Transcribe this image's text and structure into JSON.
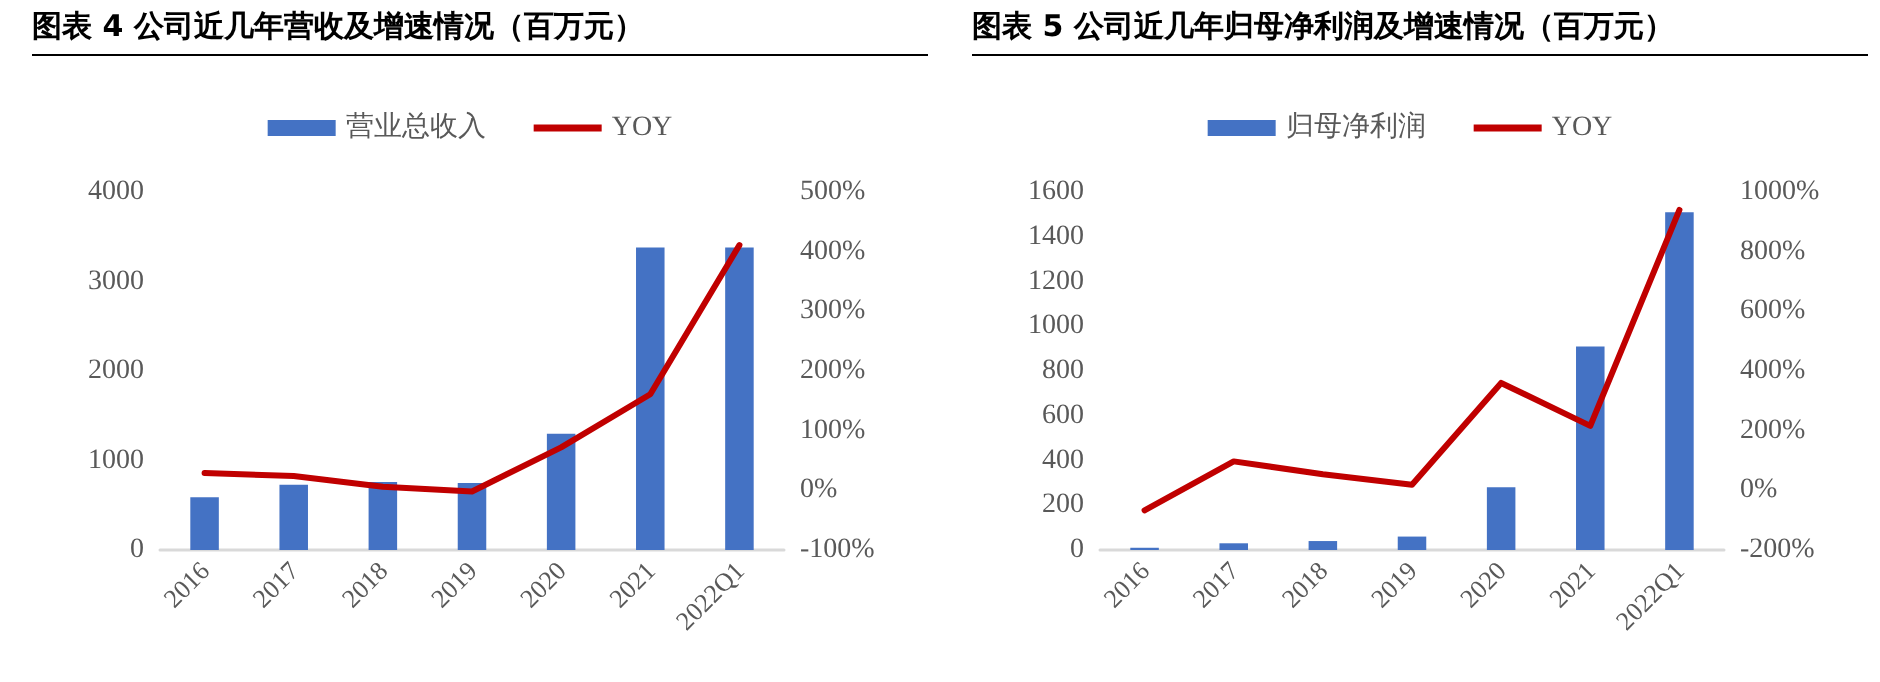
{
  "chart_data": [
    {
      "type": "bar",
      "title": "图表 4  公司近几年营收及增速情况（百万元）",
      "categories": [
        "2016",
        "2017",
        "2018",
        "2019",
        "2020",
        "2021",
        "2022Q1"
      ],
      "series": [
        {
          "name": "营业总收入",
          "color": "#4472c4",
          "values": [
            590,
            730,
            760,
            750,
            1300,
            3380,
            3380
          ]
        },
        {
          "name": "YOY",
          "type": "line",
          "axis": "y2",
          "color": "#c00000",
          "values": [
            29,
            24,
            6,
            -2,
            72,
            161,
            411
          ]
        }
      ],
      "ylim": [
        0,
        4000
      ],
      "yticks": [
        0,
        1000,
        2000,
        3000,
        4000
      ],
      "y2lim": [
        -100,
        500
      ],
      "y2ticks": [
        {
          "value": -100,
          "label": "-100%"
        },
        {
          "value": 0,
          "label": "0%"
        },
        {
          "value": 100,
          "label": "100%"
        },
        {
          "value": 200,
          "label": "200%"
        },
        {
          "value": 300,
          "label": "300%"
        },
        {
          "value": 400,
          "label": "400%"
        },
        {
          "value": 500,
          "label": "500%"
        }
      ],
      "grid": false,
      "legend": "top",
      "marker": "none"
    },
    {
      "type": "bar",
      "title": "图表 5  公司近几年归母净利润及增速情况（百万元）",
      "categories": [
        "2016",
        "2017",
        "2018",
        "2019",
        "2020",
        "2021",
        "2022Q1"
      ],
      "series": [
        {
          "name": "归母净利润",
          "color": "#4472c4",
          "values": [
            10,
            30,
            40,
            60,
            280,
            910,
            1510
          ]
        },
        {
          "name": "YOY",
          "type": "line",
          "axis": "y2",
          "color": "#c00000",
          "values": [
            -67,
            97,
            54,
            19,
            360,
            216,
            940
          ]
        }
      ],
      "ylim": [
        0,
        1600
      ],
      "yticks": [
        0,
        200,
        400,
        600,
        800,
        1000,
        1200,
        1400,
        1600
      ],
      "y2lim": [
        -200,
        1000
      ],
      "y2ticks": [
        {
          "value": -200,
          "label": "-200%"
        },
        {
          "value": 0,
          "label": "0%"
        },
        {
          "value": 200,
          "label": "200%"
        },
        {
          "value": 400,
          "label": "400%"
        },
        {
          "value": 600,
          "label": "600%"
        },
        {
          "value": 800,
          "label": "800%"
        },
        {
          "value": 1000,
          "label": "1000%"
        }
      ],
      "grid": false,
      "legend": "top",
      "marker": "none"
    }
  ]
}
